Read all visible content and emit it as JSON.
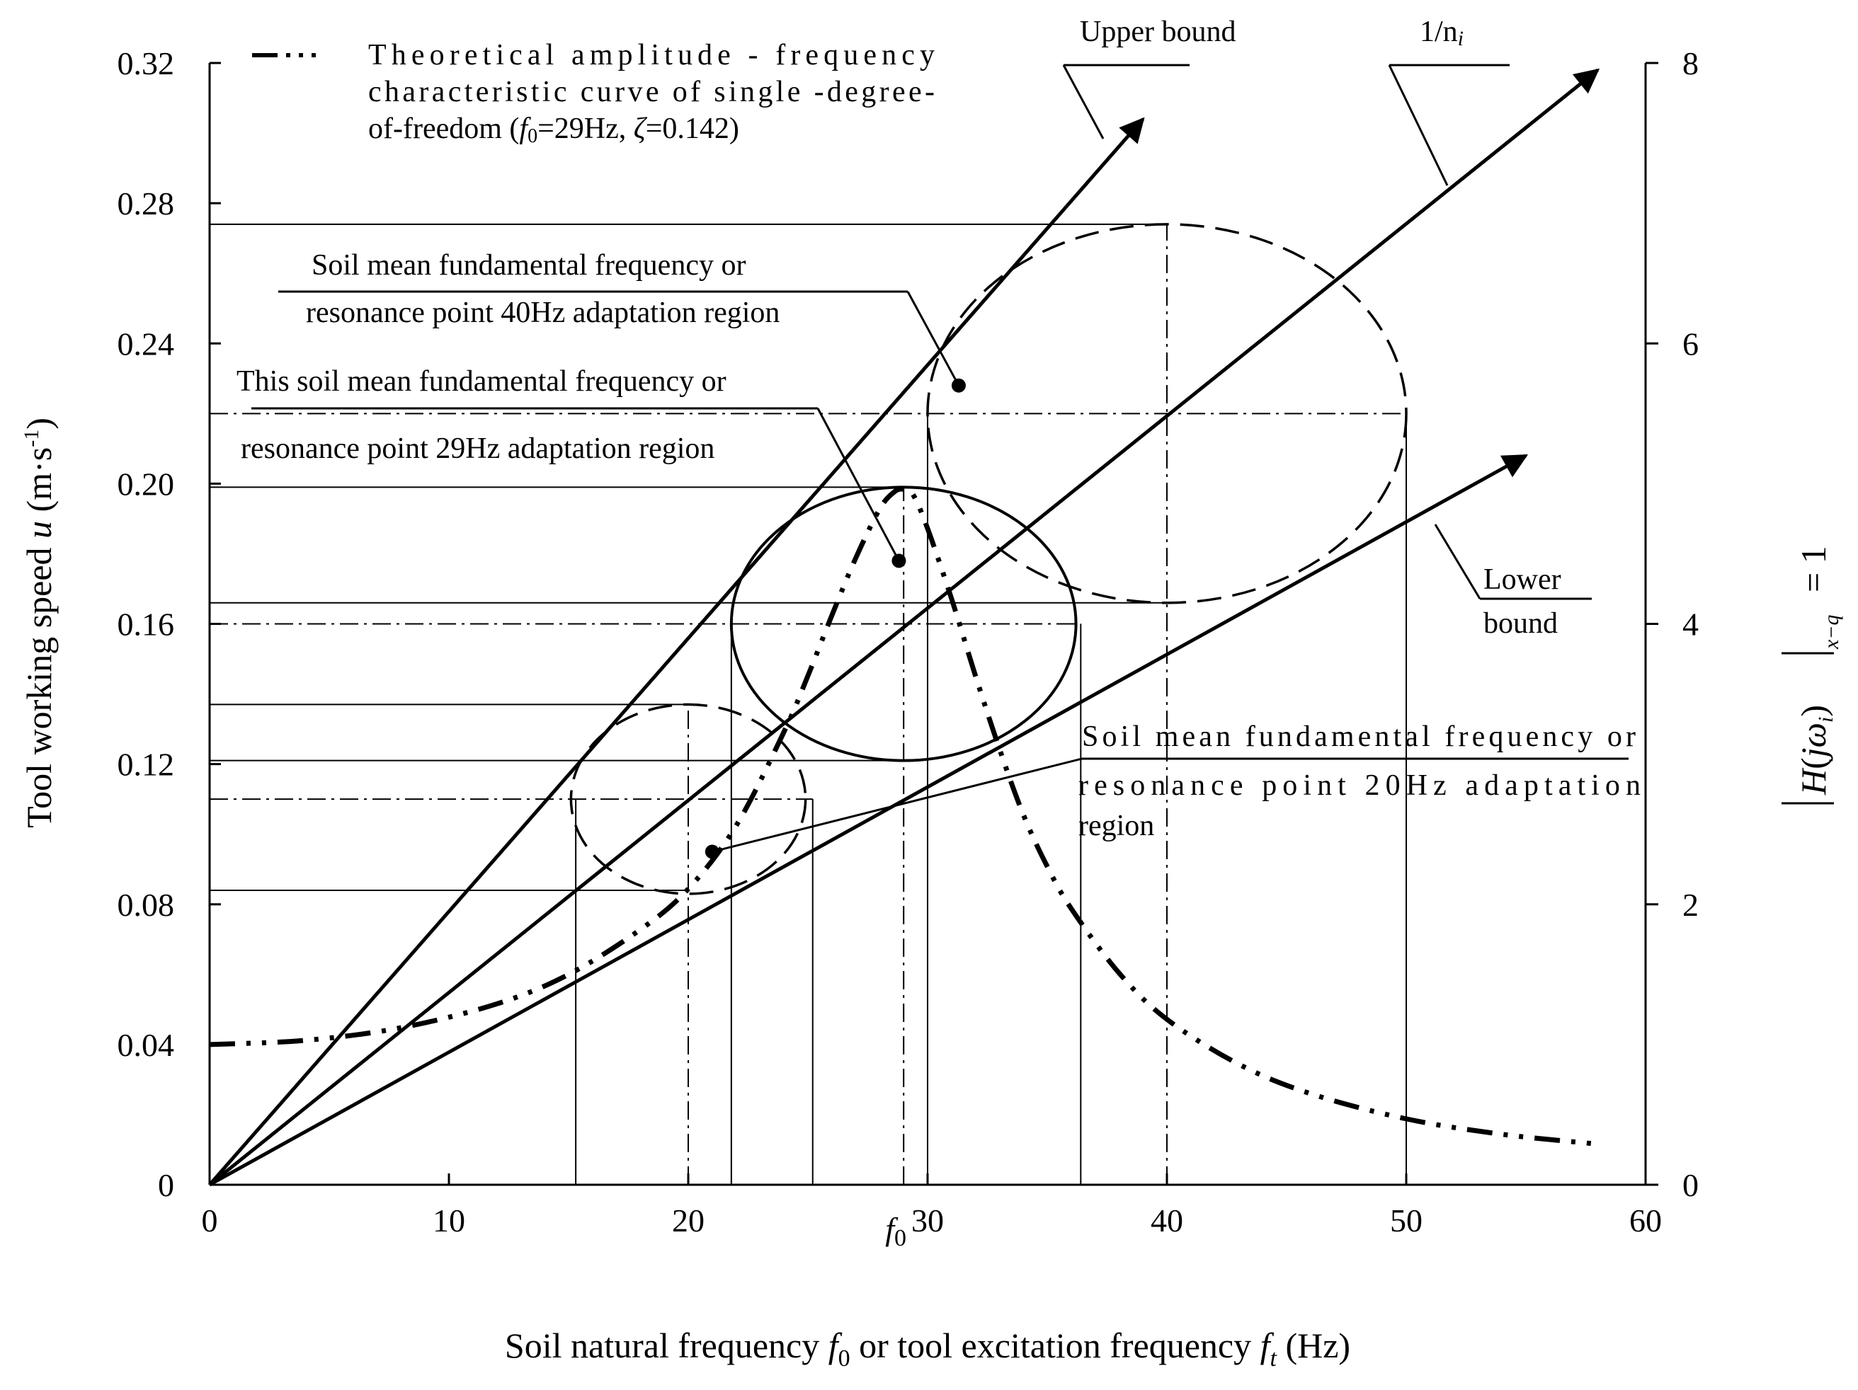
{
  "chart_data": {
    "type": "line",
    "xlabel": {
      "pre": "Soil natural frequency ",
      "f": "f",
      "sub0": "0",
      "mid": " or tool excitation frequency ",
      "ft": "f",
      "subt": "t",
      "post": " (Hz)"
    },
    "ylabel": {
      "pre": "Tool working speed ",
      "u": "u",
      "units": " (m·s",
      "sup": "-1",
      "close": ")"
    },
    "y2label": {
      "h": "H",
      "paren_open": "(",
      "j": "j",
      "omega": "ω",
      "sub_i": "i",
      "paren_close": ")",
      "sub": "x−q",
      "eq": "= 1"
    },
    "xlim": [
      0,
      60
    ],
    "ylim": [
      0,
      0.32
    ],
    "y2lim": [
      0,
      8
    ],
    "x_ticks": [
      0,
      10,
      20,
      30,
      40,
      50,
      60
    ],
    "x_tick_labels": [
      "0",
      "10",
      "20",
      "30",
      "40",
      "50",
      "60"
    ],
    "y_ticks": [
      0,
      0.04,
      0.08,
      0.12,
      0.16,
      0.2,
      0.24,
      0.28,
      0.32
    ],
    "y_tick_labels": [
      "0",
      "0.04",
      "0.08",
      "0.12",
      "0.16",
      "0.20",
      "0.24",
      "0.28",
      "0.32"
    ],
    "y2_ticks": [
      0,
      2,
      4,
      6,
      8
    ],
    "y2_tick_labels": [
      "0",
      "2",
      "4",
      "6",
      "8"
    ],
    "f0_marker": {
      "x": 29,
      "label_f": "f",
      "label_sub": "0"
    },
    "legend": {
      "line1": "Theoretical amplitude - frequency",
      "line2": "characteristic curve of single -degree-",
      "line3_a": "of-freedom (",
      "line3_f": "f",
      "line3_sub": "0",
      "line3_b": "=29Hz, ",
      "line3_z": "ζ",
      "line3_c": "=0.142)"
    },
    "series": [
      {
        "name": "Upper bound",
        "style": "solid-arrow",
        "x": [
          0,
          39
        ],
        "y": [
          0,
          0.304
        ]
      },
      {
        "name": "1/n",
        "name_sub": "i",
        "style": "solid-arrow",
        "x": [
          0,
          58
        ],
        "y": [
          0,
          0.318
        ]
      },
      {
        "name": "Lower bound",
        "style": "solid-arrow",
        "x": [
          0,
          55
        ],
        "y": [
          0,
          0.208
        ]
      },
      {
        "name": "Theoretical amplitude - frequency characteristic curve of single -degree-of-freedom (f0=29Hz, ζ=0.142)",
        "style": "dash-dot-dot",
        "axis": "right",
        "x": [
          0,
          4,
          8,
          12,
          15,
          18,
          20,
          22,
          24,
          25,
          26,
          27,
          28,
          28.6,
          29,
          29.4,
          30,
          31,
          32,
          33,
          34,
          35,
          36,
          38,
          40,
          43,
          46,
          50,
          54,
          58
        ],
        "y": [
          1.0,
          1.03,
          1.12,
          1.29,
          1.5,
          1.82,
          2.11,
          2.56,
          3.23,
          3.63,
          4.06,
          4.47,
          4.82,
          4.94,
          4.96,
          4.92,
          4.68,
          4.18,
          3.63,
          3.11,
          2.64,
          2.27,
          1.97,
          1.51,
          1.18,
          0.86,
          0.65,
          0.47,
          0.36,
          0.29
        ]
      }
    ],
    "regions": [
      {
        "label_line1": "Soil mean fundamental frequency or",
        "label_line2": "resonance point 20Hz adaptation",
        "label_line3": "region",
        "style": "dashed",
        "center": [
          20,
          0.11
        ],
        "rx": 4.9,
        "ry": 0.027,
        "x_lines": [
          15.3,
          20,
          25.2
        ],
        "y_lines": [
          0.137,
          0.11,
          0.084
        ],
        "pointer": [
          21,
          0.095
        ]
      },
      {
        "label_line1": "This soil mean fundamental frequency or",
        "label_line2": "resonance point 29Hz adaptation region",
        "style": "solid",
        "center": [
          29,
          0.16
        ],
        "rx": 7.2,
        "ry": 0.039,
        "x_lines": [
          21.8,
          29,
          36.4
        ],
        "y_lines": [
          0.199,
          0.16,
          0.121
        ],
        "pointer": [
          28.8,
          0.178
        ]
      },
      {
        "label_line1": "Soil mean fundamental frequency or",
        "label_line2": "resonance point 40Hz adaptation region",
        "style": "dashed",
        "center": [
          40,
          0.22
        ],
        "rx": 10,
        "ry": 0.054,
        "x_lines": [
          30,
          40,
          50
        ],
        "y_lines": [
          0.274,
          0.22,
          0.166
        ],
        "pointer": [
          31.3,
          0.228
        ]
      }
    ],
    "grid": false
  }
}
